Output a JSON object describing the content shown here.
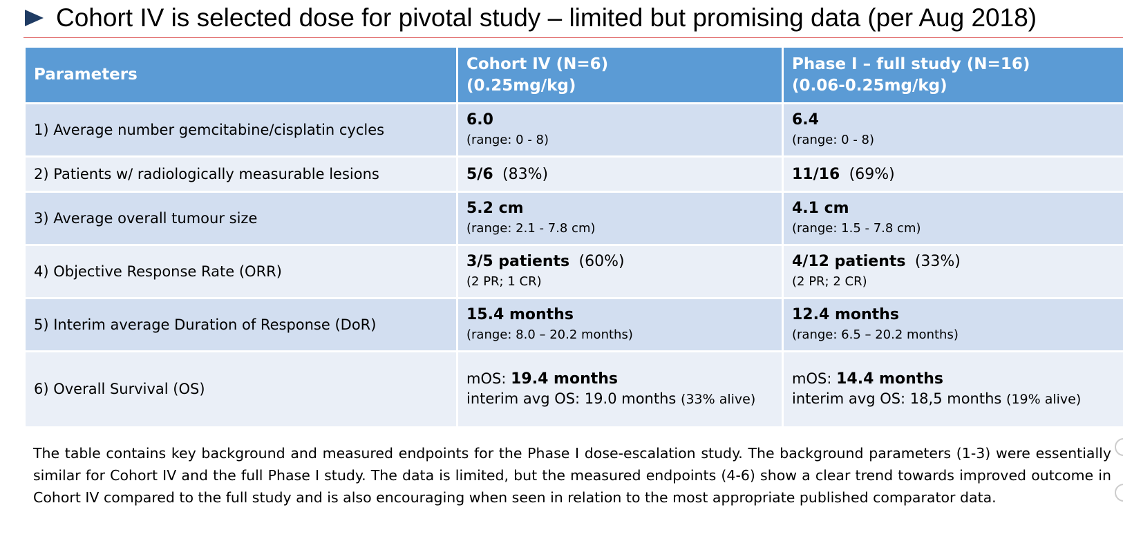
{
  "slide": {
    "title": "Cohort IV is selected dose for pivotal study – limited but promising data (per Aug 2018)"
  },
  "table": {
    "headers": [
      {
        "line1": "Parameters",
        "line2": ""
      },
      {
        "line1": "Cohort IV  (N=6)",
        "line2": "(0.25mg/kg)"
      },
      {
        "line1": "Phase I – full study  (N=16)",
        "line2": "(0.06-0.25mg/kg)"
      }
    ],
    "rows": [
      {
        "parameter": "1) Average number gemcitabine/cisplatin cycles",
        "cohort": {
          "value": "6.0",
          "pct": "",
          "detail": "(range: 0 - 8)"
        },
        "full": {
          "value": "6.4",
          "pct": "",
          "detail": "(range: 0 - 8)"
        }
      },
      {
        "parameter": "2) Patients w/ radiologically measurable lesions",
        "cohort": {
          "value": "5/6",
          "pct": "(83%)",
          "detail": ""
        },
        "full": {
          "value": "11/16",
          "pct": "(69%)",
          "detail": ""
        }
      },
      {
        "parameter": "3) Average overall tumour size",
        "cohort": {
          "value": "5.2 cm",
          "pct": "",
          "detail": "(range: 2.1 - 7.8 cm)"
        },
        "full": {
          "value": "4.1 cm",
          "pct": "",
          "detail": "(range: 1.5 - 7.8 cm)"
        }
      },
      {
        "parameter": "4) Objective Response Rate (ORR)",
        "cohort": {
          "value": "3/5 patients",
          "pct": "(60%)",
          "detail": "(2 PR; 1 CR)"
        },
        "full": {
          "value": "4/12 patients",
          "pct": "(33%)",
          "detail": "(2 PR; 2 CR)"
        }
      },
      {
        "parameter": "5) Interim average Duration of Response (DoR)",
        "cohort": {
          "value": "15.4 months",
          "pct": "",
          "detail": "(range: 8.0 – 20.2 months)"
        },
        "full": {
          "value": "12.4 months",
          "pct": "",
          "detail": "(range: 6.5 – 20.2 months)"
        }
      },
      {
        "parameter": "6) Overall Survival (OS)",
        "cohort": {
          "mos_label": "mOS:",
          "mos_value": "19.4 months",
          "interim": "interim avg OS: 19.0 months",
          "alive": "(33% alive)"
        },
        "full": {
          "mos_label": "mOS:",
          "mos_value": "14.4 months",
          "interim": "interim avg OS: 18,5 months",
          "alive": "(19% alive)"
        }
      }
    ]
  },
  "footer": {
    "text": "The table contains key background and measured endpoints for the Phase I dose-escalation study.  The background parameters (1-3) were essentially similar for Cohort IV and the full Phase I study. The data is limited, but the measured endpoints (4-6) show a clear trend towards improved outcome in Cohort IV compared to the full study and is also encouraging when seen in relation to the most appropriate published comparator data."
  },
  "colors": {
    "header_bg": "#5b9bd5",
    "row_dark": "#d2def0",
    "row_light": "#eaeff7",
    "title_rule": "#e06666",
    "bullet": "#1f3b63"
  },
  "icons": {
    "title_bullet": "triangle-right-icon"
  }
}
